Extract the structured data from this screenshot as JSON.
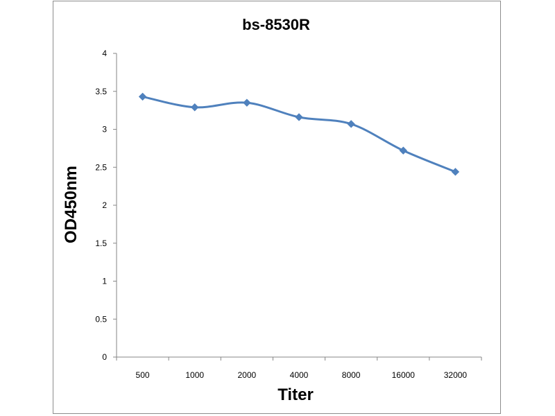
{
  "chart_data": {
    "type": "line",
    "title": "bs-8530R",
    "xlabel": "Titer",
    "ylabel": "OD450nm",
    "categories": [
      "500",
      "1000",
      "2000",
      "4000",
      "8000",
      "16000",
      "32000"
    ],
    "series": [
      {
        "values": [
          3.43,
          3.29,
          3.35,
          3.16,
          3.07,
          2.72,
          2.44
        ],
        "color": "#4f81bd"
      }
    ],
    "ylim": [
      0,
      4
    ],
    "yticks": [
      0,
      0.5,
      1,
      1.5,
      2,
      2.5,
      3,
      3.5,
      4
    ],
    "ytick_labels": [
      "0",
      "0.5",
      "1",
      "1.5",
      "2",
      "2.5",
      "3",
      "3.5",
      "4"
    ],
    "grid": false,
    "legend": "none",
    "marker": "diamond",
    "smooth": true
  }
}
